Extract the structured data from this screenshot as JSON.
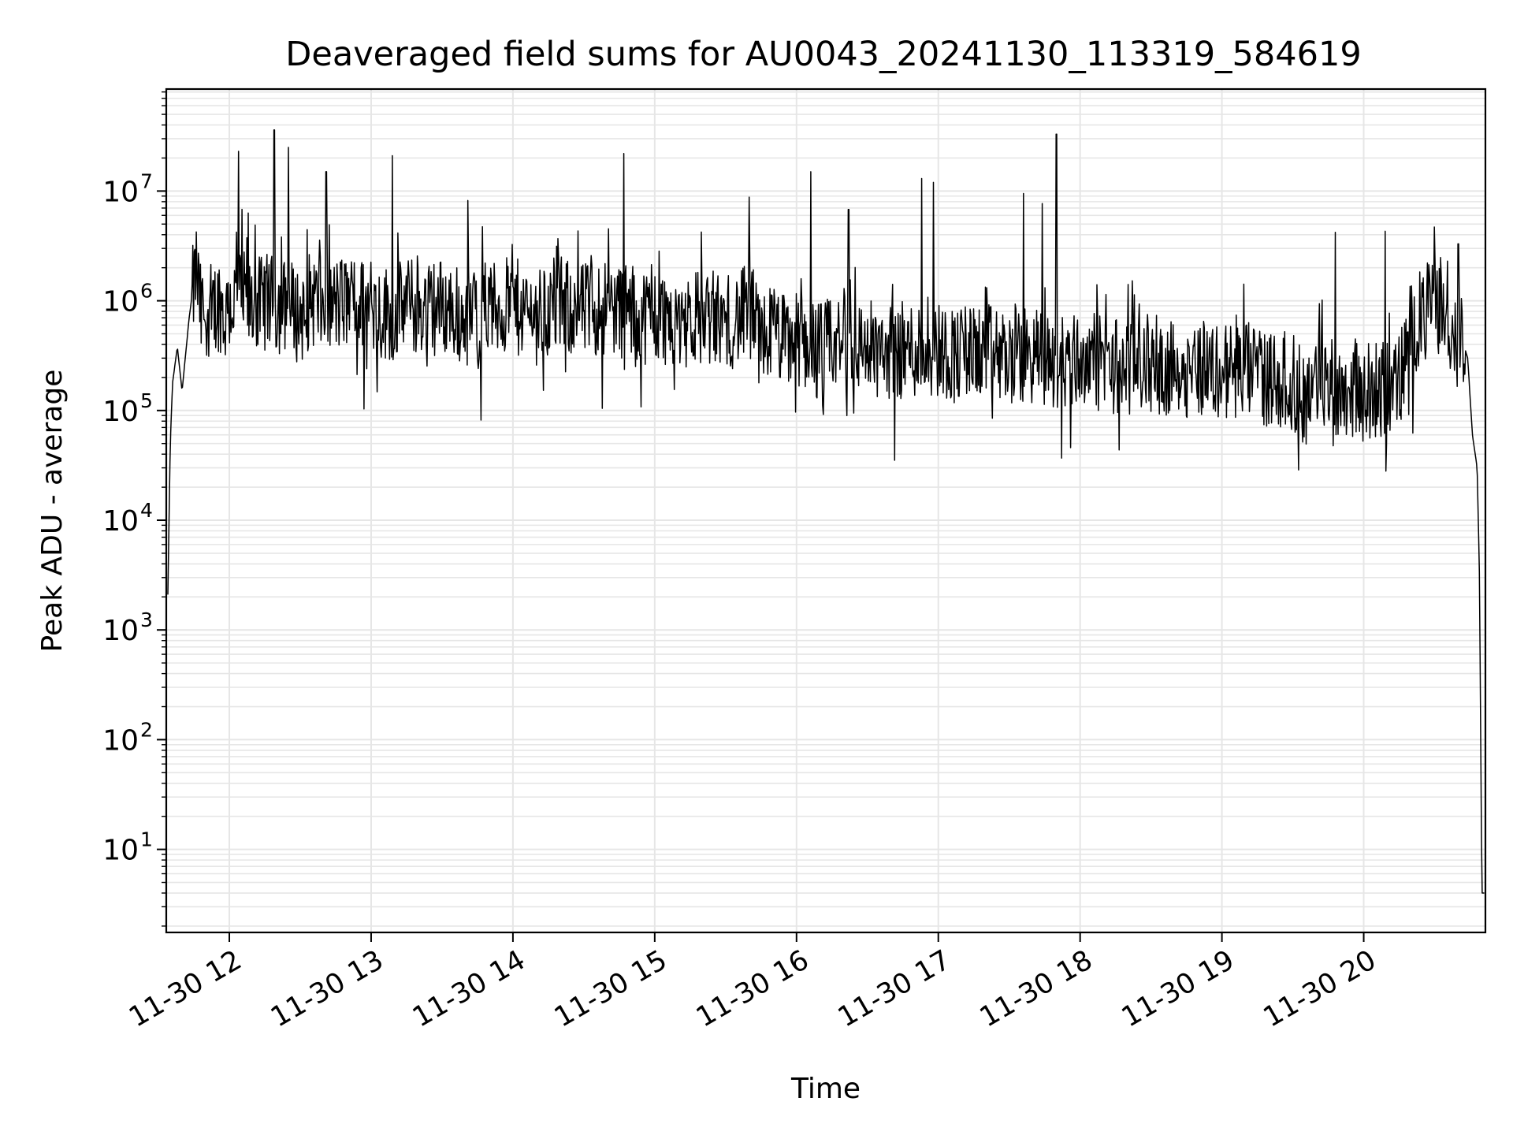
{
  "chart_data": {
    "type": "line",
    "title": "Deaveraged field sums for AU0043_20241130_113319_584619",
    "xlabel": "Time",
    "ylabel": "Peak ADU - average",
    "y_scale": "log",
    "ylim": [
      1.75,
      85000000
    ],
    "xlim": [
      "2024-11-30 11:33:19",
      "2024-11-30 20:51:30"
    ],
    "grid": true,
    "legend": "none",
    "line_color": "#000000",
    "grid_color": "#e6e6e6",
    "x_ticks": [
      "11-30 12",
      "11-30 13",
      "11-30 14",
      "11-30 15",
      "11-30 16",
      "11-30 17",
      "11-30 18",
      "11-30 19",
      "11-30 20"
    ],
    "y_ticks": [
      {
        "base": "10",
        "exp": "1",
        "value": 10
      },
      {
        "base": "10",
        "exp": "2",
        "value": 100
      },
      {
        "base": "10",
        "exp": "3",
        "value": 1000
      },
      {
        "base": "10",
        "exp": "4",
        "value": 10000
      },
      {
        "base": "10",
        "exp": "5",
        "value": 100000
      },
      {
        "base": "10",
        "exp": "6",
        "value": 1000000
      },
      {
        "base": "10",
        "exp": "7",
        "value": 10000000
      }
    ],
    "series": [
      {
        "x": [
          "11:34",
          "11:35",
          "11:36",
          "11:38",
          "11:40",
          "11:43",
          "11:46",
          "11:48",
          "11:50",
          "11:53",
          "11:56",
          "11:58",
          "12:00",
          "12:05",
          "12:10",
          "12:15",
          "12:20",
          "12:25",
          "12:30",
          "12:35",
          "12:40",
          "12:45",
          "12:50",
          "12:55",
          "13:00",
          "13:05",
          "13:10",
          "13:15",
          "13:20",
          "13:30",
          "13:40",
          "13:50",
          "14:00",
          "14:10",
          "14:20",
          "14:30",
          "14:40",
          "14:50",
          "15:00",
          "15:10",
          "15:20",
          "15:30",
          "15:40",
          "15:45",
          "15:50",
          "15:55",
          "16:00",
          "16:10",
          "16:20",
          "16:30",
          "16:40",
          "16:50",
          "17:00",
          "17:10",
          "17:20",
          "17:30",
          "17:40",
          "17:50",
          "18:00",
          "18:10",
          "18:20",
          "18:30",
          "18:40",
          "18:50",
          "19:00",
          "19:10",
          "19:20",
          "19:30",
          "19:35",
          "19:40",
          "19:50",
          "20:00",
          "20:10",
          "20:15",
          "20:20",
          "20:25",
          "20:30",
          "20:35",
          "20:38",
          "20:40",
          "20:42",
          "20:44",
          "20:46",
          "20:48",
          "20:49",
          "20:50",
          "20:51"
        ],
        "y": [
          2100,
          50000,
          180000,
          380000,
          150000,
          700000,
          2200000,
          800000,
          1000000,
          900000,
          1100000,
          750000,
          1000000,
          1200000,
          900000,
          1100000,
          1000000,
          1000000,
          800000,
          1200000,
          900000,
          1000000,
          1100000,
          1000000,
          1000000,
          850000,
          900000,
          1000000,
          950000,
          1000000,
          800000,
          900000,
          1000000,
          800000,
          1000000,
          900000,
          1000000,
          850000,
          800000,
          750000,
          800000,
          700000,
          850000,
          500000,
          600000,
          450000,
          500000,
          400000,
          450000,
          420000,
          380000,
          400000,
          400000,
          350000,
          380000,
          330000,
          350000,
          300000,
          330000,
          300000,
          280000,
          300000,
          260000,
          280000,
          250000,
          260000,
          220000,
          200000,
          140000,
          220000,
          180000,
          160000,
          180000,
          200000,
          600000,
          800000,
          1000000,
          1100000,
          400000,
          450000,
          420000,
          300000,
          60000,
          30000,
          3000,
          4,
          4
        ],
        "spikes": [
          {
            "x": "12:04",
            "y": 23000000
          },
          {
            "x": "12:08",
            "y": 6300000
          },
          {
            "x": "12:11",
            "y": 4900000
          },
          {
            "x": "12:19",
            "y": 36000000
          },
          {
            "x": "12:25",
            "y": 25000000
          },
          {
            "x": "12:41",
            "y": 15000000
          },
          {
            "x": "13:09",
            "y": 21000000
          },
          {
            "x": "13:41",
            "y": 8200000
          },
          {
            "x": "14:47",
            "y": 22000000
          },
          {
            "x": "15:40",
            "y": 8800000
          },
          {
            "x": "16:06",
            "y": 15000000
          },
          {
            "x": "16:22",
            "y": 6800000
          },
          {
            "x": "16:53",
            "y": 13000000
          },
          {
            "x": "16:58",
            "y": 12000000
          },
          {
            "x": "17:36",
            "y": 9500000
          },
          {
            "x": "17:44",
            "y": 7700000
          },
          {
            "x": "17:50",
            "y": 33000000
          },
          {
            "x": "19:48",
            "y": 4200000
          },
          {
            "x": "20:09",
            "y": 4300000
          },
          {
            "x": "20:30",
            "y": 4700000
          },
          {
            "x": "20:40",
            "y": 3300000
          }
        ]
      }
    ]
  }
}
